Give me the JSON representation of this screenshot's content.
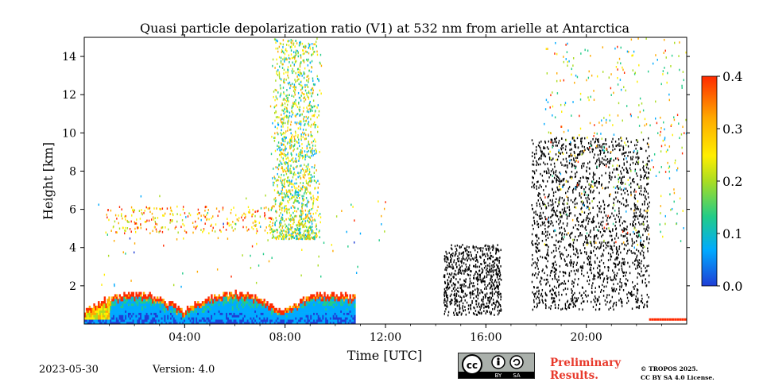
{
  "chart_data": {
    "type": "heatmap",
    "title": "Quasi particle depolarization ratio (V1) at 532 nm from arielle at Antarctica",
    "xlabel": "Time [UTC]",
    "ylabel": "Height [km]",
    "x_range_hours": [
      0,
      24
    ],
    "ylim": [
      0,
      15
    ],
    "x_ticks": [
      {
        "value": 4,
        "label": "04:00"
      },
      {
        "value": 8,
        "label": "08:00"
      },
      {
        "value": 12,
        "label": "12:00"
      },
      {
        "value": 16,
        "label": "16:00"
      },
      {
        "value": 20,
        "label": "20:00"
      }
    ],
    "y_ticks": [
      {
        "value": 2,
        "label": "2"
      },
      {
        "value": 4,
        "label": "4"
      },
      {
        "value": 6,
        "label": "6"
      },
      {
        "value": 8,
        "label": "8"
      },
      {
        "value": 10,
        "label": "10"
      },
      {
        "value": 12,
        "label": "12"
      },
      {
        "value": 14,
        "label": "14"
      }
    ],
    "colorbar": {
      "range": [
        0.0,
        0.4
      ],
      "ticks": [
        {
          "value": 0.0,
          "label": "0.0"
        },
        {
          "value": 0.1,
          "label": "0.1"
        },
        {
          "value": 0.2,
          "label": "0.2"
        },
        {
          "value": 0.3,
          "label": "0.3"
        },
        {
          "value": 0.4,
          "label": "0.4"
        }
      ],
      "colors": [
        "#1f3ed6",
        "#00aaff",
        "#22cc88",
        "#aadd22",
        "#ffee00",
        "#ffaa00",
        "#ff2a00"
      ]
    },
    "regions": [
      {
        "name": "boundary-layer-aerosol",
        "t": [
          0,
          10.8
        ],
        "h": [
          0,
          1.6
        ],
        "value": 0.08
      },
      {
        "name": "cirrus-column",
        "t": [
          7.3,
          9.8
        ],
        "h": [
          4.5,
          15
        ],
        "value": 0.25
      },
      {
        "name": "thin-layer",
        "t": [
          0.8,
          7.5
        ],
        "h": [
          4.8,
          6.2
        ],
        "value": 0.3
      },
      {
        "name": "noise-afternoon",
        "t": [
          14.3,
          16.6
        ],
        "h": [
          0.5,
          4.2
        ],
        "value": 0.0
      },
      {
        "name": "noise-evening",
        "t": [
          17.8,
          22.5
        ],
        "h": [
          0.8,
          9.8
        ],
        "value": 0.0
      },
      {
        "name": "upper-scatter",
        "t": [
          18.3,
          24
        ],
        "h": [
          4,
          15
        ],
        "value": 0.22
      }
    ]
  },
  "footer": {
    "date": "2023-05-30",
    "version": "Version: 4.0",
    "preliminary_line1": "Preliminary",
    "preliminary_line2": "Results.",
    "copyright_line1": "© TROPOS 2025.",
    "copyright_line2": "CC BY SA 4.0 License.",
    "license_by": "BY",
    "license_sa": "SA"
  }
}
